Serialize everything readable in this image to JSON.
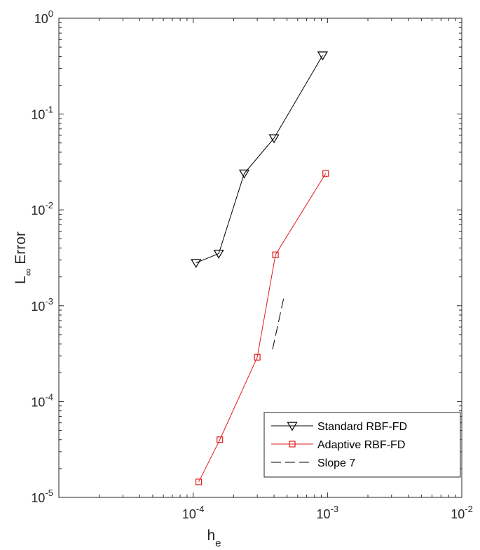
{
  "chart_data": {
    "type": "line",
    "title": "",
    "xlabel": {
      "main": "h",
      "sub": "e"
    },
    "ylabel": {
      "main": "L",
      "sub": "∞",
      "rest": " Error"
    },
    "x_scale": "log",
    "y_scale": "log",
    "xlim": [
      1e-05,
      0.01
    ],
    "ylim": [
      1e-05,
      1
    ],
    "x_ticks": [
      {
        "value": 0.0001,
        "base": "10",
        "exp": "-4"
      },
      {
        "value": 0.001,
        "base": "10",
        "exp": "-3"
      },
      {
        "value": 0.01,
        "base": "10",
        "exp": "-2"
      }
    ],
    "y_ticks": [
      {
        "value": 1e-05,
        "base": "10",
        "exp": "-5"
      },
      {
        "value": 0.0001,
        "base": "10",
        "exp": "-4"
      },
      {
        "value": 0.001,
        "base": "10",
        "exp": "-3"
      },
      {
        "value": 0.01,
        "base": "10",
        "exp": "-2"
      },
      {
        "value": 0.1,
        "base": "10",
        "exp": "-1"
      },
      {
        "value": 1,
        "base": "10",
        "exp": "0"
      }
    ],
    "grid": false,
    "legend_position": "bottom-right",
    "series": [
      {
        "name": "Standard RBF-FD",
        "color": "#000000",
        "marker": "triangle-down",
        "line": "solid",
        "x": [
          0.000105,
          0.000155,
          0.00024,
          0.0004,
          0.00092
        ],
        "y": [
          0.0028,
          0.0035,
          0.024,
          0.056,
          0.41
        ]
      },
      {
        "name": "Adaptive RBF-FD",
        "color": "#e31a1c",
        "marker": "square",
        "line": "solid",
        "x": [
          0.00011,
          0.000158,
          0.0003,
          0.00041,
          0.00097
        ],
        "y": [
          1.45e-05,
          4e-05,
          0.00029,
          0.0034,
          0.024
        ]
      },
      {
        "name": "Slope 7",
        "color": "#000000",
        "marker": "none",
        "line": "dashed",
        "x": [
          0.00039,
          0.000475
        ],
        "y": [
          0.00035,
          0.00125
        ]
      }
    ]
  }
}
